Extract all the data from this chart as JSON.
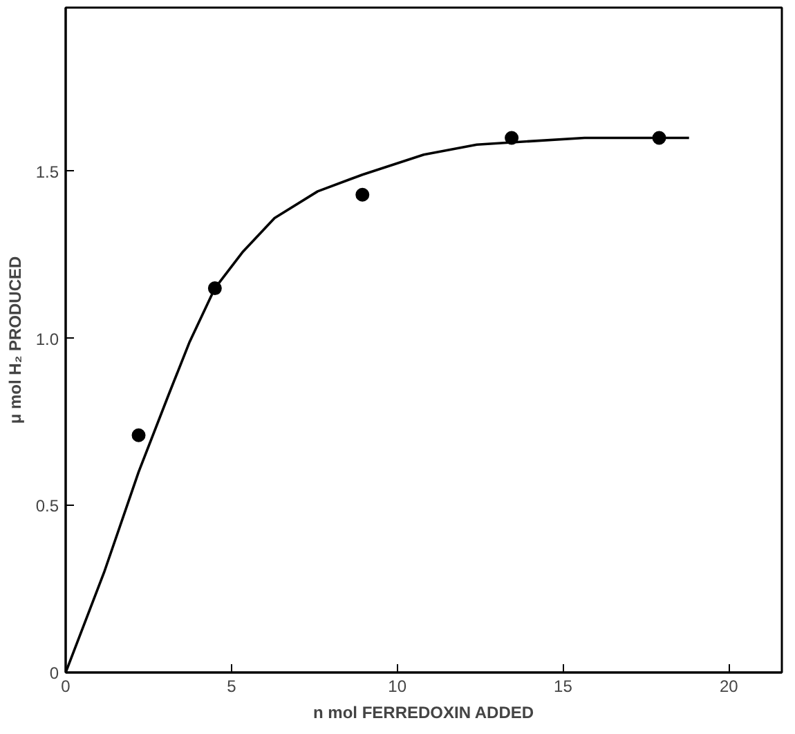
{
  "chart_data": {
    "type": "scatter",
    "xlabel": "n mol FERREDOXIN ADDED",
    "ylabel": "μ mol H₂ PRODUCED",
    "xlim": [
      0,
      21.6
    ],
    "ylim": [
      0,
      1.99
    ],
    "xticks": [
      0,
      5,
      10,
      15,
      20
    ],
    "yticks": [
      0,
      0.5,
      {
        "value": 1,
        "label": "1.0"
      },
      1.5
    ],
    "grid": false,
    "marker": "circle",
    "series": [
      {
        "color": "#000000",
        "x": [
          2.2,
          4.5,
          8.95,
          13.45,
          17.9
        ],
        "values": [
          0.71,
          1.15,
          1.43,
          1.6,
          1.6
        ]
      },
      {
        "type": "line",
        "color": "#000000",
        "marker": "none",
        "x": [
          0,
          1.16,
          2.2,
          3.1,
          3.74,
          4.5,
          5.35,
          6.3,
          7.6,
          8.95,
          10.8,
          12.4,
          14.0,
          15.65,
          18.8
        ],
        "values": [
          0,
          0.3,
          0.6,
          0.83,
          0.99,
          1.15,
          1.26,
          1.36,
          1.44,
          1.49,
          1.55,
          1.58,
          1.59,
          1.6,
          1.6
        ]
      }
    ]
  }
}
